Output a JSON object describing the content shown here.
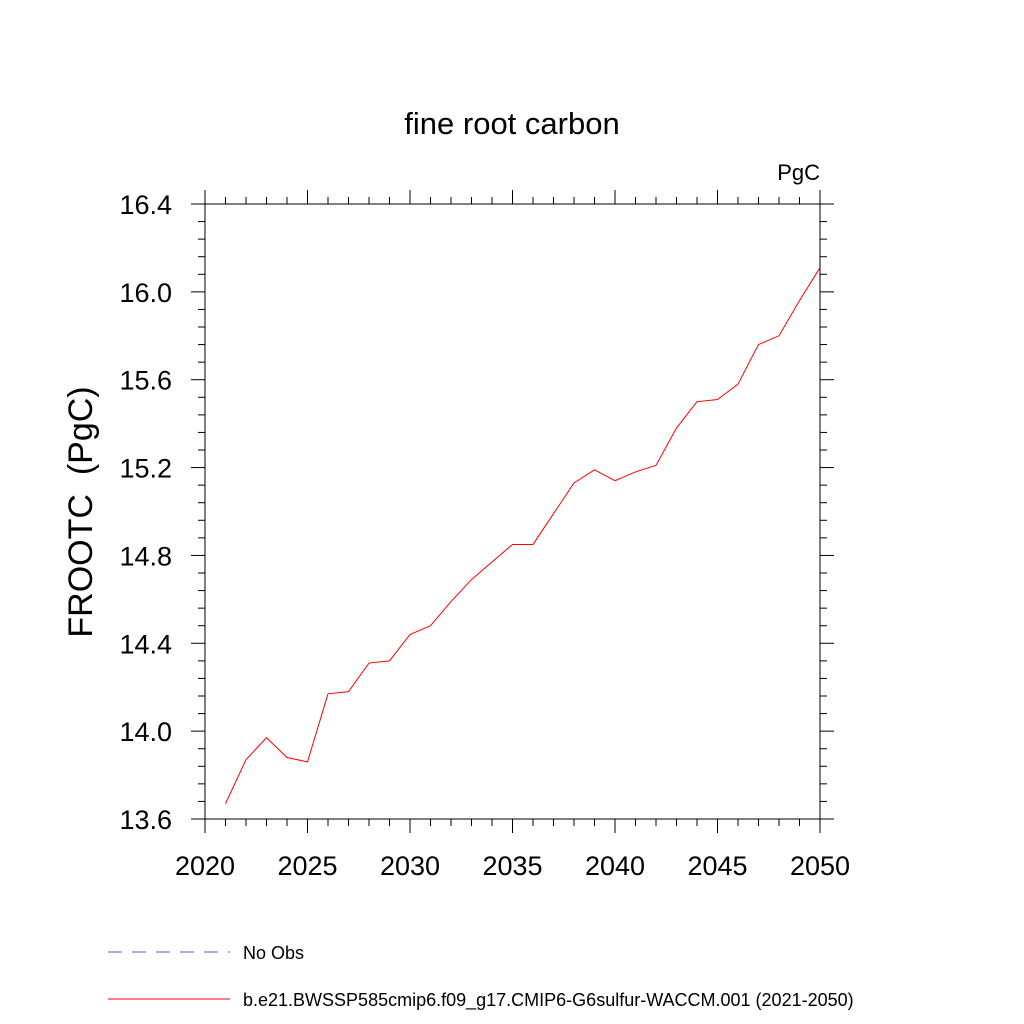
{
  "chart_data": {
    "type": "line",
    "title": "fine root carbon",
    "units": "PgC",
    "xlabel": "",
    "ylabel": "FROOTC  (PgC)",
    "xlim": [
      2020,
      2050
    ],
    "ylim": [
      13.6,
      16.4
    ],
    "x_ticks": [
      2020,
      2025,
      2030,
      2035,
      2040,
      2045,
      2050
    ],
    "x_tick_labels": [
      "2020",
      "2025",
      "2030",
      "2035",
      "2040",
      "2045",
      "2050"
    ],
    "y_ticks": [
      13.6,
      14.0,
      14.4,
      14.8,
      15.2,
      15.6,
      16.0,
      16.4
    ],
    "y_tick_labels": [
      "13.6",
      "14.0",
      "14.4",
      "14.8",
      "15.2",
      "15.6",
      "16.0",
      "16.4"
    ],
    "grid": false,
    "legend_placement": "bottom",
    "series": [
      {
        "name": "b.e21.BWSSP585cmip6.f09_g17.CMIP6-G6sulfur-WACCM.001 (2021-2050)",
        "color": "#ff0000",
        "style": "solid",
        "x": [
          2021,
          2022,
          2023,
          2024,
          2025,
          2026,
          2027,
          2028,
          2029,
          2030,
          2031,
          2032,
          2033,
          2034,
          2035,
          2036,
          2037,
          2038,
          2039,
          2040,
          2041,
          2042,
          2043,
          2044,
          2045,
          2046,
          2047,
          2048,
          2049,
          2050
        ],
        "values": [
          13.67,
          13.87,
          13.97,
          13.88,
          13.86,
          14.17,
          14.18,
          14.31,
          14.32,
          14.44,
          14.48,
          14.59,
          14.69,
          14.77,
          14.85,
          14.85,
          14.99,
          15.13,
          15.19,
          15.14,
          15.18,
          15.21,
          15.38,
          15.5,
          15.51,
          15.58,
          15.76,
          15.8,
          15.96,
          16.11
        ]
      },
      {
        "name": "No Obs",
        "color": "#6a5acd",
        "style": "dashed",
        "x": [],
        "values": []
      }
    ]
  }
}
